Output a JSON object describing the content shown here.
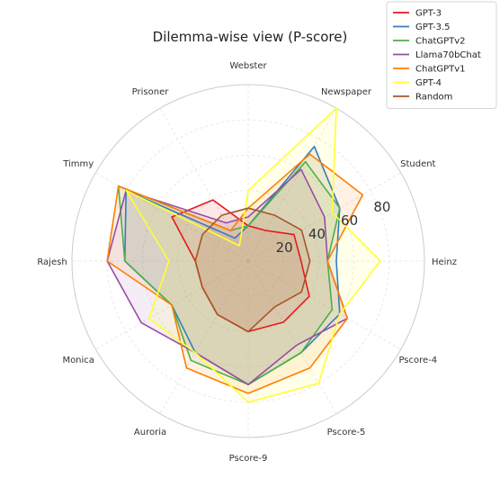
{
  "chart_data": {
    "type": "radar",
    "title": "Dilemma-wise view (P-score)",
    "axes": [
      "Heinz",
      "Student",
      "Newspaper",
      "Webster",
      "Prisoner",
      "Timmy",
      "Rajesh",
      "Monica",
      "Auroria",
      "Pscore-9",
      "Pscore-5",
      "Pscore-4"
    ],
    "rlim": [
      0,
      100
    ],
    "radial_ticks": [
      20,
      40,
      60,
      80
    ],
    "grid": true,
    "legend_position": "top-right",
    "series": [
      {
        "name": "GPT-3",
        "color": "#e41a1c",
        "values": [
          30,
          30,
          20,
          20,
          40,
          50,
          30,
          30,
          35,
          40,
          40,
          40
        ]
      },
      {
        "name": "GPT-3.5",
        "color": "#377eb8",
        "values": [
          50,
          60,
          75,
          20,
          15,
          80,
          70,
          50,
          60,
          70,
          60,
          60
        ]
      },
      {
        "name": "ChatGPTv2",
        "color": "#4daf4a",
        "values": [
          45,
          60,
          65,
          20,
          20,
          85,
          70,
          50,
          65,
          70,
          60,
          55
        ]
      },
      {
        "name": "Llama70bChat",
        "color": "#984ea3",
        "values": [
          45,
          50,
          60,
          25,
          25,
          80,
          80,
          70,
          60,
          70,
          55,
          65
        ]
      },
      {
        "name": "ChatGPTv1",
        "color": "#ff7f00",
        "values": [
          45,
          75,
          70,
          30,
          20,
          85,
          80,
          50,
          70,
          75,
          70,
          65
        ]
      },
      {
        "name": "GPT-4",
        "color": "#ffff33",
        "values": [
          75,
          55,
          100,
          40,
          10,
          80,
          45,
          65,
          60,
          80,
          80,
          60
        ]
      },
      {
        "name": "Random",
        "color": "#a65628",
        "values": [
          35,
          35,
          30,
          30,
          30,
          30,
          30,
          30,
          35,
          40,
          30,
          35
        ]
      }
    ]
  }
}
